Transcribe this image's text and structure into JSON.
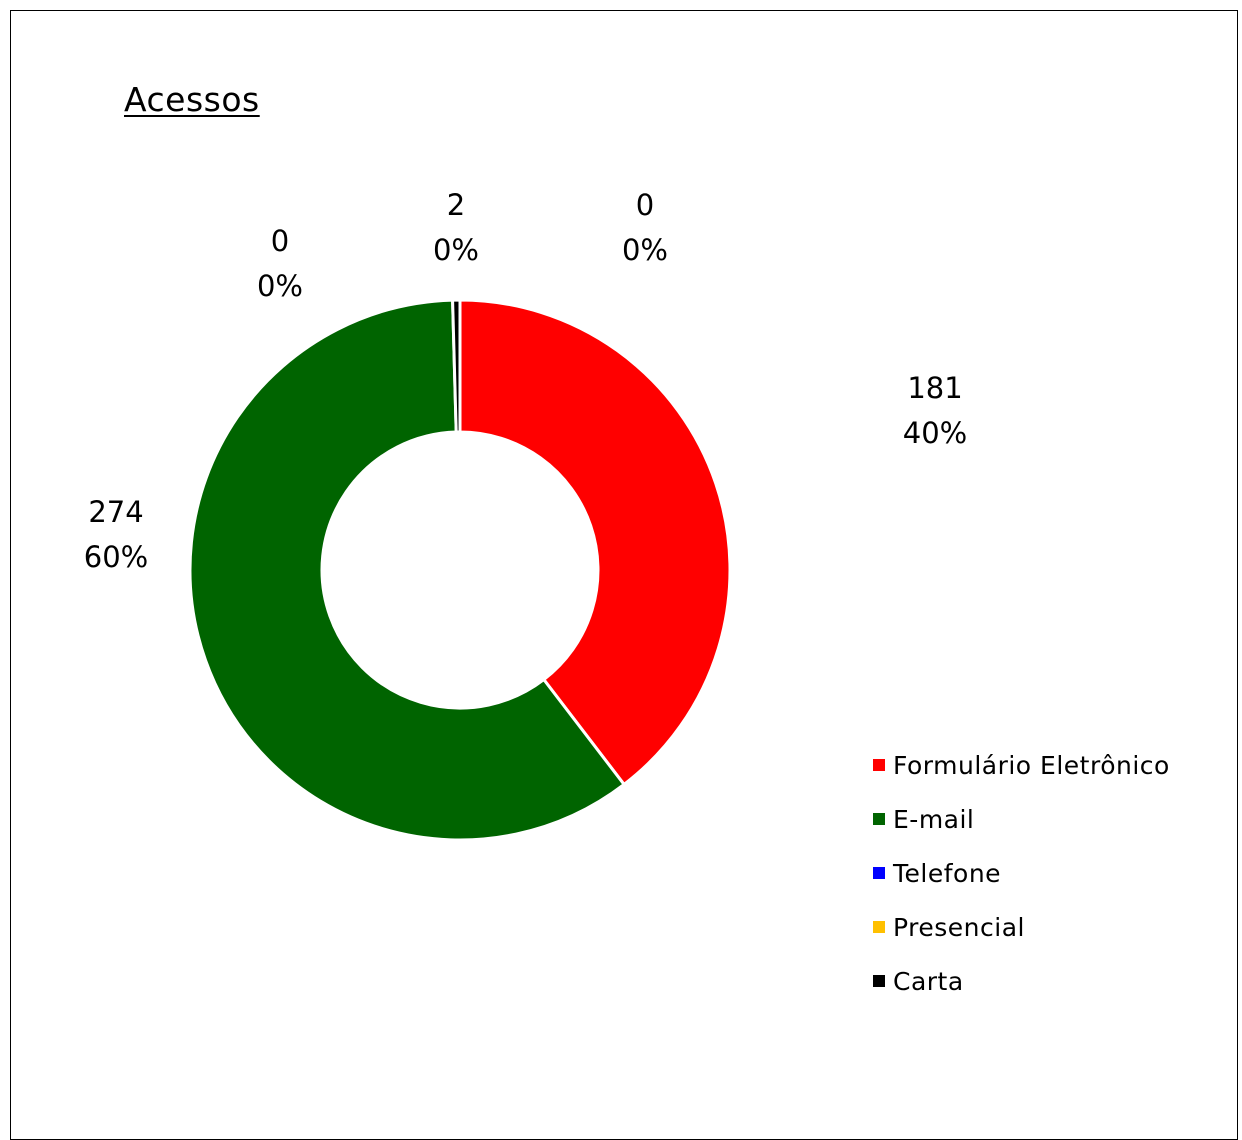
{
  "chart_data": {
    "type": "pie",
    "variant": "donut",
    "title": "Acessos",
    "slices": [
      {
        "label": "Formulário Eletrônico",
        "value": 181,
        "percent_label": "40%",
        "color": "#ff0000"
      },
      {
        "label": "E-mail",
        "value": 274,
        "percent_label": "60%",
        "color": "#006400"
      },
      {
        "label": "Telefone",
        "value": 0,
        "percent_label": "0%",
        "color": "#0000ff"
      },
      {
        "label": "Presencial",
        "value": 0,
        "percent_label": "0%",
        "color": "#ffc000"
      },
      {
        "label": "Carta",
        "value": 2,
        "percent_label": "0%",
        "color": "#000000"
      }
    ],
    "legend_position": "bottom-right",
    "slice_border_color": "#ffffff"
  }
}
